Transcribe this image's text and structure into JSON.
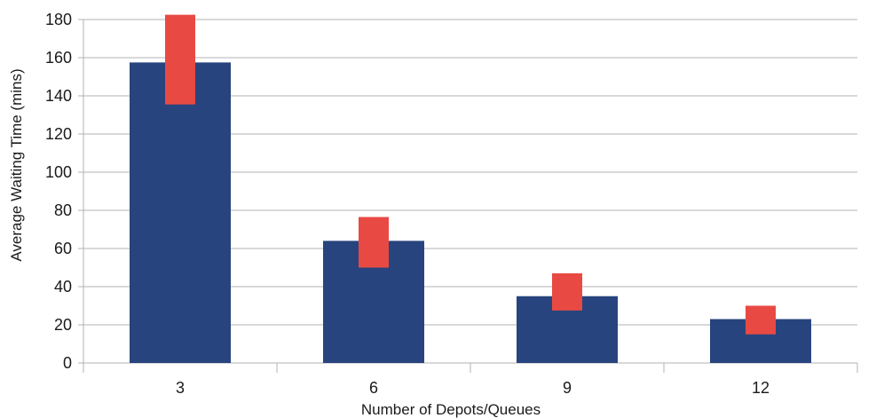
{
  "chart_data": {
    "type": "bar",
    "title": "",
    "xlabel": "Number of Depots/Queues",
    "ylabel": "Average Waiting Time (mins)",
    "categories": [
      "3",
      "6",
      "9",
      "12"
    ],
    "values": [
      157.5,
      64,
      35,
      23
    ],
    "error_ranges": [
      [
        135.5,
        182.5
      ],
      [
        50,
        76.5
      ],
      [
        27.5,
        47
      ],
      [
        15,
        30
      ]
    ],
    "ylim": [
      0,
      180
    ],
    "yticks": [
      "0",
      "20",
      "40",
      "60",
      "80",
      "100",
      "120",
      "140",
      "160",
      "180"
    ],
    "grid": true,
    "legend": "none",
    "colors": {
      "bar": "#27447e",
      "error": "#e84a43",
      "grid": "#b3b3b3",
      "axis": "#b3b3b3"
    }
  }
}
